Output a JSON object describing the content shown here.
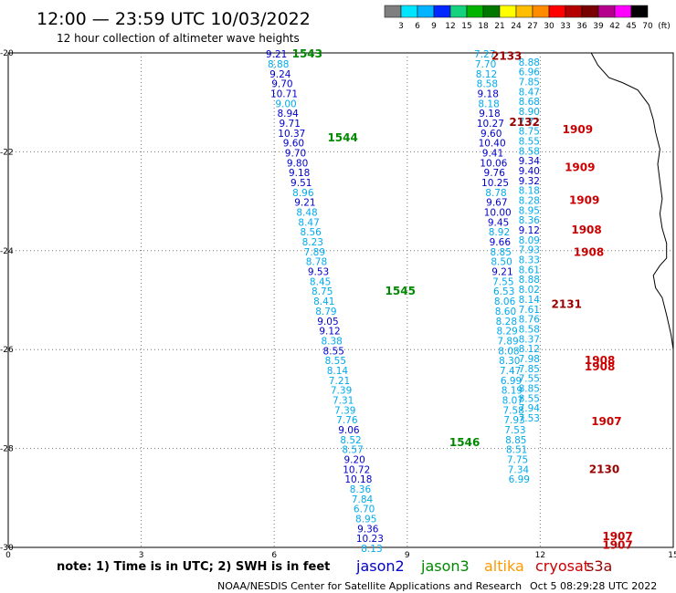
{
  "header": {
    "title": "12:00 — 23:59 UTC 10/03/2022",
    "subtitle": "12 hour collection of altimeter wave heights"
  },
  "colorbar": {
    "labels": [
      "3",
      "6",
      "9",
      "12",
      "15",
      "18",
      "21",
      "24",
      "27",
      "30",
      "33",
      "36",
      "39",
      "42",
      "45",
      "70",
      "(ft)"
    ],
    "colors": [
      "#7f7f7f",
      "#00e5ff",
      "#00b4ff",
      "#0028ff",
      "#14d27d",
      "#00b400",
      "#007800",
      "#ffff00",
      "#ffbe00",
      "#ff8c00",
      "#ff0000",
      "#b40000",
      "#780000",
      "#b4008c",
      "#ff00ff",
      "#000000"
    ]
  },
  "footer": {
    "note": "note:  1) Time is in UTC;  2) SWH is in feet",
    "credit": "NOAA/NESDIS Center for Satellite Applications and Research",
    "timestamp": "Oct  5 08:29:28 UTC 2022"
  },
  "legend": [
    {
      "name": "jason2",
      "color": "#0000cc"
    },
    {
      "name": "jason3",
      "color": "#008800"
    },
    {
      "name": "altika",
      "color": "#ff9900"
    },
    {
      "name": "cryosat",
      "color": "#cc0000"
    },
    {
      "name": "s3a",
      "color": "#990000"
    }
  ],
  "chart_data": {
    "type": "scatter",
    "title": "12:00 — 23:59 UTC 10/03/2022",
    "x_ticks": [
      "0",
      "3",
      "6",
      "9",
      "12",
      "15"
    ],
    "y_ticks": [
      "-20",
      "-22",
      "-24",
      "-26",
      "-28",
      "-30"
    ],
    "xlim": [
      0,
      15
    ],
    "ylim": [
      -30,
      -20
    ],
    "grid": "dotted",
    "series": [
      {
        "kind": "values",
        "color": "#0000cc",
        "label_pos": "left",
        "x": 6.05,
        "y_start": -20.02,
        "y_step": -0.2,
        "x_step": 0.043,
        "values": [
          "9.21",
          "8.88",
          "9.24",
          "9.70",
          "10.71",
          "9.00",
          "8.94",
          "9.71",
          "10.37",
          "9.60",
          "9.70",
          "9.80",
          "9.18",
          "9.51",
          "8.96",
          "9.21",
          "8.48",
          "8.47",
          "8.56",
          "8.23",
          "7.89",
          "8.78",
          "9.53",
          "8.45",
          "8.75",
          "8.41",
          "8.79",
          "9.05",
          "9.12",
          "8.38",
          "8.55",
          "8.55",
          "8.14",
          "7.21",
          "7.39",
          "7.31",
          "7.39",
          "7.76",
          "9.06",
          "8.52",
          "8.57",
          "9.20",
          "10.72",
          "10.18",
          "8.36",
          "7.84",
          "6.70",
          "8.95",
          "9.36",
          "10.23",
          "8.13"
        ],
        "colors": [
          "#0000cc",
          "#00aaee",
          "#0000cc",
          "#0000cc",
          "#0000cc",
          "#00aaee",
          "#0000cc",
          "#0000cc",
          "#0000cc",
          "#0000cc",
          "#0000cc",
          "#0000cc",
          "#0000cc",
          "#0000cc",
          "#00aaee",
          "#0000cc",
          "#00aaee",
          "#00aaee",
          "#00aaee",
          "#00aaee",
          "#00aaee",
          "#00aaee",
          "#0000cc",
          "#00aaee",
          "#00aaee",
          "#00aaee",
          "#00aaee",
          "#0000cc",
          "#0000cc",
          "#00aaee",
          "#0000cc",
          "#00aaee",
          "#00aaee",
          "#00aaee",
          "#00aaee",
          "#00aaee",
          "#00aaee",
          "#00aaee",
          "#0000cc",
          "#00aaee",
          "#00aaee",
          "#0000cc",
          "#0000cc",
          "#0000cc",
          "#00aaee",
          "#00aaee",
          "#00aaee",
          "#00aaee",
          "#0000cc",
          "#0000cc",
          "#00aaee"
        ]
      },
      {
        "kind": "values",
        "color": "#00aaee",
        "label_pos": "left",
        "x": 10.75,
        "y_start": -20.02,
        "y_step": -0.2,
        "x_step": 0.018,
        "values": [
          "7.27",
          "7.70",
          "8.12",
          "8.58",
          "9.18",
          "8.18",
          "9.18",
          "10.27",
          "9.60",
          "10.40",
          "9.41",
          "10.06",
          "9.76",
          "10.25",
          "8.78",
          "9.67",
          "10.00",
          "9.45",
          "8.92",
          "9.66",
          "8.85",
          "8.50",
          "9.21",
          "7.55",
          "6.53",
          "8.06",
          "8.60",
          "8.28",
          "8.29",
          "7.89",
          "8.08",
          "8.30",
          "7.47",
          "6.99",
          "8.19",
          "8.07",
          "7.58",
          "7.93",
          "7.53",
          "8.85",
          "8.51",
          "7.75",
          "7.34",
          "6.99"
        ],
        "colors": [
          "#00aaee",
          "#00aaee",
          "#00aaee",
          "#00aaee",
          "#0000cc",
          "#00aaee",
          "#0000cc",
          "#0000cc",
          "#0000cc",
          "#0000cc",
          "#0000cc",
          "#0000cc",
          "#0000cc",
          "#0000cc",
          "#00aaee",
          "#0000cc",
          "#0000cc",
          "#0000cc",
          "#00aaee",
          "#0000cc",
          "#00aaee",
          "#00aaee",
          "#0000cc",
          "#00aaee",
          "#00aaee",
          "#00aaee",
          "#00aaee",
          "#00aaee",
          "#00aaee",
          "#00aaee",
          "#00aaee",
          "#00aaee",
          "#00aaee",
          "#00aaee",
          "#00aaee",
          "#00aaee",
          "#00aaee",
          "#00aaee",
          "#00aaee",
          "#00aaee",
          "#00aaee",
          "#00aaee",
          "#00aaee",
          "#00aaee"
        ]
      },
      {
        "kind": "values",
        "color": "#00aaee",
        "label_pos": "right",
        "x": 11.75,
        "y_start": -20.18,
        "y_step": -0.2,
        "x_step": 0.0,
        "values": [
          "8.88",
          "6.96",
          "7.85",
          "8.47",
          "8.68",
          "8.90",
          "7.72",
          "8.75",
          "8.55",
          "8.58",
          "9.34",
          "9.40",
          "9.32",
          "8.18",
          "8.28",
          "8.95",
          "8.36",
          "9.12",
          "8.09",
          "7.93",
          "8.33",
          "8.61",
          "8.88",
          "8.02",
          "8.14",
          "7.61",
          "8.76",
          "8.58",
          "8.37",
          "8.12",
          "7.98",
          "7.85",
          "7.55",
          "8.85",
          "8.55",
          "7.94",
          "7.53"
        ],
        "colors": [
          "#00aaee",
          "#00aaee",
          "#00aaee",
          "#00aaee",
          "#00aaee",
          "#00aaee",
          "#00aaee",
          "#00aaee",
          "#00aaee",
          "#00aaee",
          "#0000cc",
          "#0000cc",
          "#0000cc",
          "#00aaee",
          "#00aaee",
          "#00aaee",
          "#00aaee",
          "#0000cc",
          "#00aaee",
          "#00aaee",
          "#00aaee",
          "#00aaee",
          "#00aaee",
          "#00aaee",
          "#00aaee",
          "#00aaee",
          "#00aaee",
          "#00aaee",
          "#00aaee",
          "#00aaee",
          "#00aaee",
          "#00aaee",
          "#00aaee",
          "#00aaee",
          "#00aaee",
          "#00aaee",
          "#00aaee"
        ]
      }
    ],
    "pass_labels": [
      {
        "text": "1543",
        "x": 6.4,
        "y": -20.02,
        "color": "#008800"
      },
      {
        "text": "1544",
        "x": 7.2,
        "y": -21.72,
        "color": "#008800"
      },
      {
        "text": "1545",
        "x": 8.5,
        "y": -24.82,
        "color": "#008800"
      },
      {
        "text": "1546",
        "x": 9.95,
        "y": -27.88,
        "color": "#008800"
      },
      {
        "text": "2133",
        "x": 10.9,
        "y": -20.06,
        "color": "#990000"
      },
      {
        "text": "2132",
        "x": 11.3,
        "y": -21.4,
        "color": "#990000"
      },
      {
        "text": "2131",
        "x": 12.25,
        "y": -25.08,
        "color": "#990000"
      },
      {
        "text": "2130",
        "x": 13.1,
        "y": -28.42,
        "color": "#990000"
      },
      {
        "text": "1909",
        "x": 12.5,
        "y": -21.55,
        "color": "#cc0000"
      },
      {
        "text": "1909",
        "x": 12.55,
        "y": -22.32,
        "color": "#cc0000"
      },
      {
        "text": "1909",
        "x": 12.65,
        "y": -22.98,
        "color": "#cc0000"
      },
      {
        "text": "1908",
        "x": 12.7,
        "y": -23.58,
        "color": "#cc0000"
      },
      {
        "text": "1908",
        "x": 12.75,
        "y": -24.03,
        "color": "#cc0000"
      },
      {
        "text": "1908",
        "x": 13.0,
        "y": -26.22,
        "color": "#cc0000"
      },
      {
        "text": "1908",
        "x": 13.0,
        "y": -26.35,
        "color": "#cc0000"
      },
      {
        "text": "1907",
        "x": 13.15,
        "y": -27.45,
        "color": "#cc0000"
      },
      {
        "text": "1907",
        "x": 13.4,
        "y": -29.78,
        "color": "#cc0000"
      },
      {
        "text": "1907",
        "x": 13.4,
        "y": -29.95,
        "color": "#cc0000"
      }
    ],
    "coastline": [
      [
        13.15,
        -20.0
      ],
      [
        13.3,
        -20.25
      ],
      [
        13.55,
        -20.5
      ],
      [
        13.85,
        -20.6
      ],
      [
        14.2,
        -20.75
      ],
      [
        14.45,
        -21.05
      ],
      [
        14.55,
        -21.35
      ],
      [
        14.6,
        -21.6
      ],
      [
        14.7,
        -21.95
      ],
      [
        14.65,
        -22.25
      ],
      [
        14.7,
        -22.6
      ],
      [
        14.75,
        -22.95
      ],
      [
        14.7,
        -23.25
      ],
      [
        14.75,
        -23.55
      ],
      [
        14.85,
        -23.85
      ],
      [
        14.85,
        -24.15
      ],
      [
        14.7,
        -24.3
      ],
      [
        14.55,
        -24.5
      ],
      [
        14.6,
        -24.75
      ],
      [
        14.75,
        -24.95
      ],
      [
        14.85,
        -25.3
      ],
      [
        14.95,
        -25.7
      ],
      [
        15.0,
        -26.0
      ]
    ]
  }
}
